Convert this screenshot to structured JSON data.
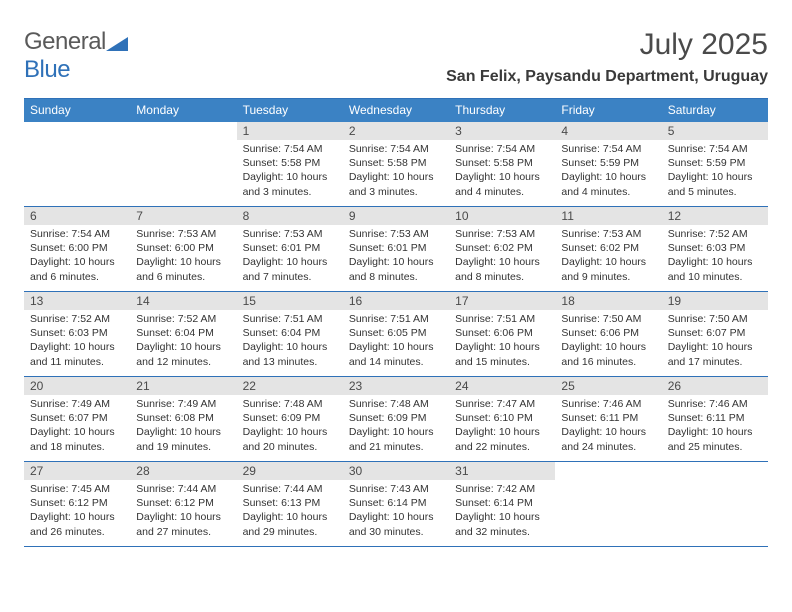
{
  "logo": {
    "text1": "General",
    "text2": "Blue"
  },
  "colors": {
    "accent": "#3b82c4",
    "accent_border": "#2f71b8",
    "daynum_bg": "#e4e4e4",
    "text_gray": "#4a4a4a"
  },
  "month_title": "July 2025",
  "location": "San Felix, Paysandu Department, Uruguay",
  "weekdays": [
    "Sunday",
    "Monday",
    "Tuesday",
    "Wednesday",
    "Thursday",
    "Friday",
    "Saturday"
  ],
  "weeks": [
    [
      null,
      null,
      {
        "n": "1",
        "sunrise": "7:54 AM",
        "sunset": "5:58 PM",
        "daylight": "10 hours and 3 minutes."
      },
      {
        "n": "2",
        "sunrise": "7:54 AM",
        "sunset": "5:58 PM",
        "daylight": "10 hours and 3 minutes."
      },
      {
        "n": "3",
        "sunrise": "7:54 AM",
        "sunset": "5:58 PM",
        "daylight": "10 hours and 4 minutes."
      },
      {
        "n": "4",
        "sunrise": "7:54 AM",
        "sunset": "5:59 PM",
        "daylight": "10 hours and 4 minutes."
      },
      {
        "n": "5",
        "sunrise": "7:54 AM",
        "sunset": "5:59 PM",
        "daylight": "10 hours and 5 minutes."
      }
    ],
    [
      {
        "n": "6",
        "sunrise": "7:54 AM",
        "sunset": "6:00 PM",
        "daylight": "10 hours and 6 minutes."
      },
      {
        "n": "7",
        "sunrise": "7:53 AM",
        "sunset": "6:00 PM",
        "daylight": "10 hours and 6 minutes."
      },
      {
        "n": "8",
        "sunrise": "7:53 AM",
        "sunset": "6:01 PM",
        "daylight": "10 hours and 7 minutes."
      },
      {
        "n": "9",
        "sunrise": "7:53 AM",
        "sunset": "6:01 PM",
        "daylight": "10 hours and 8 minutes."
      },
      {
        "n": "10",
        "sunrise": "7:53 AM",
        "sunset": "6:02 PM",
        "daylight": "10 hours and 8 minutes."
      },
      {
        "n": "11",
        "sunrise": "7:53 AM",
        "sunset": "6:02 PM",
        "daylight": "10 hours and 9 minutes."
      },
      {
        "n": "12",
        "sunrise": "7:52 AM",
        "sunset": "6:03 PM",
        "daylight": "10 hours and 10 minutes."
      }
    ],
    [
      {
        "n": "13",
        "sunrise": "7:52 AM",
        "sunset": "6:03 PM",
        "daylight": "10 hours and 11 minutes."
      },
      {
        "n": "14",
        "sunrise": "7:52 AM",
        "sunset": "6:04 PM",
        "daylight": "10 hours and 12 minutes."
      },
      {
        "n": "15",
        "sunrise": "7:51 AM",
        "sunset": "6:04 PM",
        "daylight": "10 hours and 13 minutes."
      },
      {
        "n": "16",
        "sunrise": "7:51 AM",
        "sunset": "6:05 PM",
        "daylight": "10 hours and 14 minutes."
      },
      {
        "n": "17",
        "sunrise": "7:51 AM",
        "sunset": "6:06 PM",
        "daylight": "10 hours and 15 minutes."
      },
      {
        "n": "18",
        "sunrise": "7:50 AM",
        "sunset": "6:06 PM",
        "daylight": "10 hours and 16 minutes."
      },
      {
        "n": "19",
        "sunrise": "7:50 AM",
        "sunset": "6:07 PM",
        "daylight": "10 hours and 17 minutes."
      }
    ],
    [
      {
        "n": "20",
        "sunrise": "7:49 AM",
        "sunset": "6:07 PM",
        "daylight": "10 hours and 18 minutes."
      },
      {
        "n": "21",
        "sunrise": "7:49 AM",
        "sunset": "6:08 PM",
        "daylight": "10 hours and 19 minutes."
      },
      {
        "n": "22",
        "sunrise": "7:48 AM",
        "sunset": "6:09 PM",
        "daylight": "10 hours and 20 minutes."
      },
      {
        "n": "23",
        "sunrise": "7:48 AM",
        "sunset": "6:09 PM",
        "daylight": "10 hours and 21 minutes."
      },
      {
        "n": "24",
        "sunrise": "7:47 AM",
        "sunset": "6:10 PM",
        "daylight": "10 hours and 22 minutes."
      },
      {
        "n": "25",
        "sunrise": "7:46 AM",
        "sunset": "6:11 PM",
        "daylight": "10 hours and 24 minutes."
      },
      {
        "n": "26",
        "sunrise": "7:46 AM",
        "sunset": "6:11 PM",
        "daylight": "10 hours and 25 minutes."
      }
    ],
    [
      {
        "n": "27",
        "sunrise": "7:45 AM",
        "sunset": "6:12 PM",
        "daylight": "10 hours and 26 minutes."
      },
      {
        "n": "28",
        "sunrise": "7:44 AM",
        "sunset": "6:12 PM",
        "daylight": "10 hours and 27 minutes."
      },
      {
        "n": "29",
        "sunrise": "7:44 AM",
        "sunset": "6:13 PM",
        "daylight": "10 hours and 29 minutes."
      },
      {
        "n": "30",
        "sunrise": "7:43 AM",
        "sunset": "6:14 PM",
        "daylight": "10 hours and 30 minutes."
      },
      {
        "n": "31",
        "sunrise": "7:42 AM",
        "sunset": "6:14 PM",
        "daylight": "10 hours and 32 minutes."
      },
      null,
      null
    ]
  ],
  "labels": {
    "sunrise_prefix": "Sunrise: ",
    "sunset_prefix": "Sunset: ",
    "daylight_prefix": "Daylight: "
  }
}
